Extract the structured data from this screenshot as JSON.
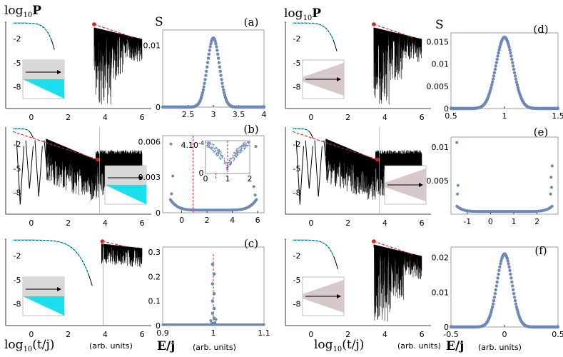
{
  "figure": {
    "left_title": "log",
    "left_title_sub": "10",
    "left_title_var": "P",
    "s_label": "S",
    "bottom_left_label": "log",
    "bottom_left_label_sub": "10",
    "bottom_left_label_var": "(t/j)",
    "bottom_units": "(arb. units)",
    "energy_label": "E/j",
    "inset_b_value": "4.10",
    "inset_b_exp": "-4",
    "colors": {
      "cyan": "#19e0ec",
      "red": "#e02020",
      "blue": "#6c88b9",
      "gray": "#d8d8d8",
      "pink": "#d7c9c9"
    }
  },
  "chart_data": [
    {
      "panel": "a-left",
      "type": "line",
      "yticks": [
        "-2",
        "-5",
        "-8"
      ],
      "xticks": [
        "0",
        "2",
        "4",
        "6"
      ]
    },
    {
      "panel": "a",
      "type": "scatter",
      "label": "(a)",
      "xticks": [
        "2.5",
        "3",
        "3.5",
        "4"
      ],
      "yticks": [
        "0.01",
        "0"
      ],
      "xlim": [
        2.0,
        4.0
      ],
      "ylim": [
        0,
        0.0125
      ],
      "peak_x": 3.0,
      "peak_y": 0.0112,
      "width": 0.12
    },
    {
      "panel": "b-left",
      "type": "line",
      "yticks": [
        "-2",
        "-5",
        "-8"
      ],
      "xticks": [
        "0",
        "2",
        "4",
        "6"
      ]
    },
    {
      "panel": "b",
      "type": "scatter",
      "label": "(b)",
      "xticks": [
        "0",
        "2",
        "4",
        "6"
      ],
      "yticks": [
        "0.006",
        "0.003",
        "0"
      ],
      "xlim": [
        -1.5,
        6.5
      ],
      "ylim": [
        0,
        0.0065
      ],
      "inset_xticks": [
        "0",
        "1",
        "2"
      ],
      "inset_yticks": [
        "0"
      ]
    },
    {
      "panel": "c-left",
      "type": "line",
      "yticks": [
        "-2",
        "-5",
        "-8"
      ],
      "xticks": [
        "0",
        "2",
        "4",
        "6"
      ]
    },
    {
      "panel": "c",
      "type": "scatter",
      "label": "(c)",
      "xticks": [
        "0.9",
        "1",
        "1.1"
      ],
      "yticks": [
        "0.3",
        "0.2",
        "0.1",
        "0"
      ],
      "xlim": [
        0.9,
        1.1
      ],
      "ylim": [
        0,
        0.32
      ],
      "peak_x": 1.0,
      "peak_y": 0.25
    },
    {
      "panel": "d-left",
      "type": "line",
      "yticks": [
        "-2",
        "-5",
        "-8"
      ],
      "xticks": [
        "0",
        "2",
        "4",
        "6"
      ]
    },
    {
      "panel": "d",
      "type": "scatter",
      "label": "(d)",
      "xticks": [
        "0.5",
        "1",
        "1.5"
      ],
      "yticks": [
        "0.015",
        "0.01",
        "0.005",
        "0"
      ],
      "xlim": [
        0.5,
        1.5
      ],
      "ylim": [
        0,
        0.017
      ],
      "peak_x": 1.0,
      "peak_y": 0.016,
      "width": 0.08
    },
    {
      "panel": "e-left",
      "type": "line",
      "yticks": [
        "-2",
        "-5",
        "-8"
      ],
      "xticks": [
        "0",
        "2",
        "4",
        "6"
      ]
    },
    {
      "panel": "e",
      "type": "scatter",
      "label": "(e)",
      "xticks": [
        "-1",
        "0",
        "1",
        "2"
      ],
      "yticks": [
        "0.01",
        "0.005"
      ],
      "xlim": [
        -1.7,
        2.9
      ],
      "ylim": [
        0,
        0.0115
      ]
    },
    {
      "panel": "f-left",
      "type": "line",
      "yticks": [
        "-2",
        "-5",
        "-8"
      ],
      "xticks": [
        "0",
        "2",
        "4",
        "6"
      ]
    },
    {
      "panel": "f",
      "type": "scatter",
      "label": "(f)",
      "xticks": [
        "-0.5",
        "0",
        "0.5"
      ],
      "yticks": [
        "0.02",
        "0.01",
        "0"
      ],
      "xlim": [
        -0.5,
        0.5
      ],
      "ylim": [
        0,
        0.023
      ],
      "peak_x": 0.0,
      "peak_y": 0.021,
      "width": 0.07
    }
  ]
}
